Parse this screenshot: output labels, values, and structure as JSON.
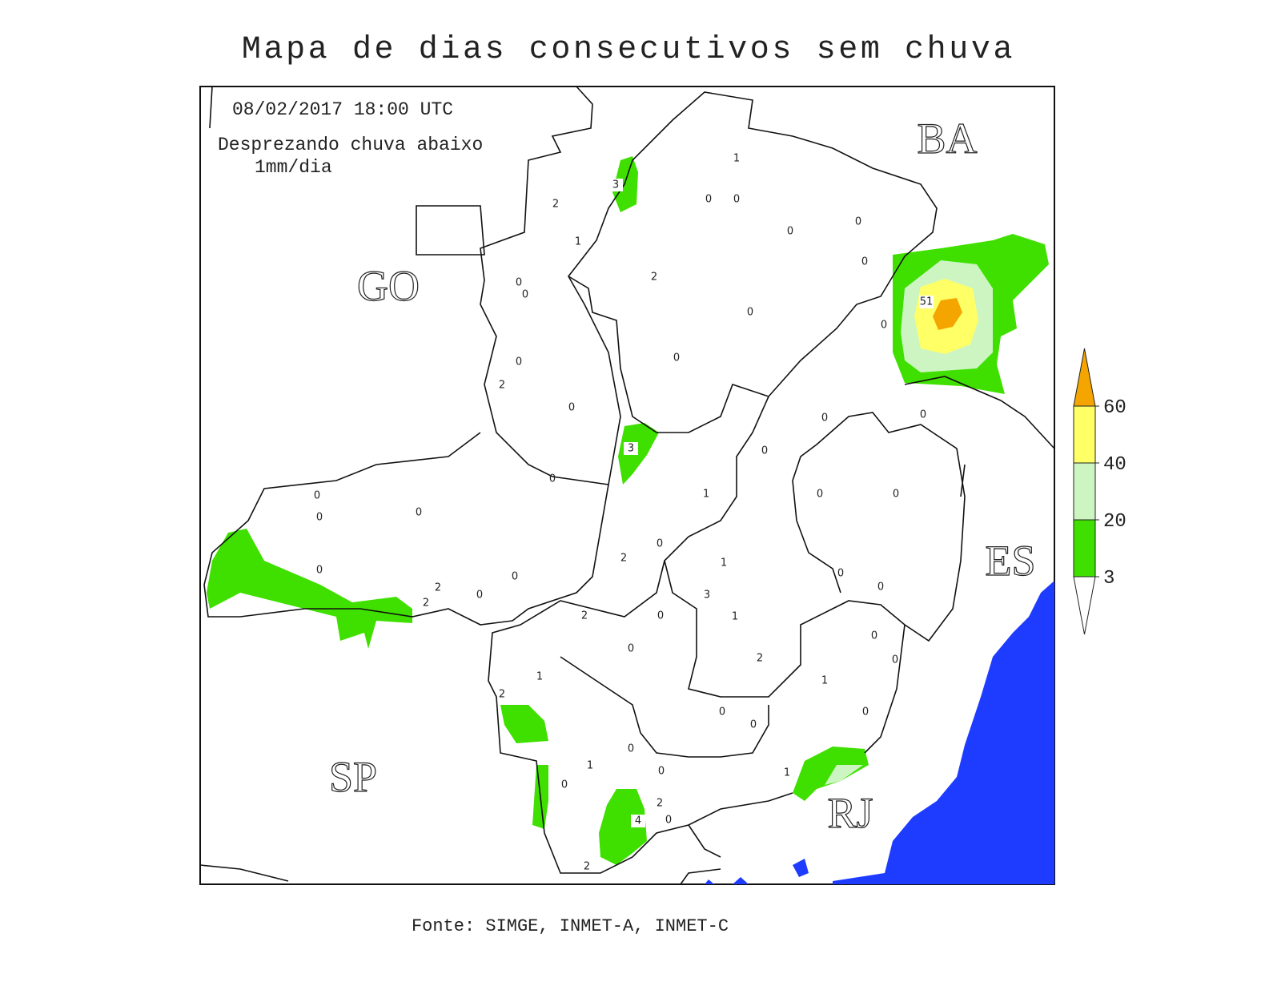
{
  "title": "Mapa de dias consecutivos sem chuva",
  "date": "08/02/2017 18:00 UTC",
  "note": [
    "Desprezando chuva abaixo",
    "1mm/dia"
  ],
  "states": [
    "GO",
    "BA",
    "ES",
    "SP",
    "RJ"
  ],
  "legend": {
    "levels": [
      3,
      20,
      40,
      60
    ],
    "colors": [
      "#ffffff",
      "#3fe000",
      "#ccf5c2",
      "#ffff66",
      "#f5a500"
    ]
  },
  "stations": [
    1,
    0,
    0,
    2,
    3,
    0,
    0,
    1,
    0,
    2,
    0,
    0,
    51,
    0,
    0,
    0,
    0,
    2,
    0,
    0,
    0,
    3,
    0,
    0,
    1,
    0,
    0,
    0,
    0,
    0,
    0,
    2,
    1,
    0,
    0,
    0,
    2,
    3,
    0,
    2,
    0,
    2,
    0,
    1,
    0,
    0,
    0,
    2,
    1,
    1,
    2,
    0,
    0,
    0,
    0,
    1,
    0,
    0,
    1,
    2,
    4,
    0,
    2
  ],
  "footer": "Fonte: SIMGE, INMET-A, INMET-C"
}
